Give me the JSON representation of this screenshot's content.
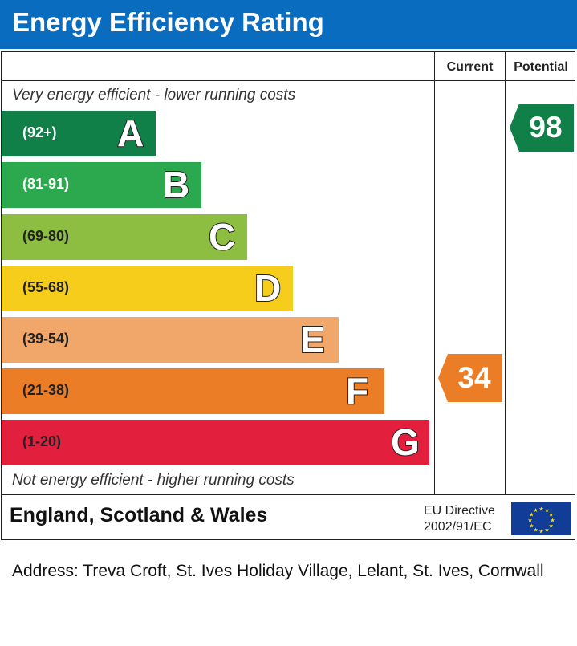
{
  "header": {
    "title": "Energy Efficiency Rating",
    "color": "#0a6cbf"
  },
  "columns": {
    "current": "Current",
    "potential": "Potential"
  },
  "notes": {
    "top": "Very energy efficient - lower running costs",
    "bottom": "Not energy efficient - higher running costs"
  },
  "bands": [
    {
      "range": "(92+)",
      "letter": "A",
      "color": "#118048"
    },
    {
      "range": "(81-91)",
      "letter": "B",
      "color": "#2ca94f"
    },
    {
      "range": "(69-80)",
      "letter": "C",
      "color": "#8dbd41"
    },
    {
      "range": "(55-68)",
      "letter": "D",
      "color": "#f6cd1b"
    },
    {
      "range": "(39-54)",
      "letter": "E",
      "color": "#f1a76a"
    },
    {
      "range": "(21-38)",
      "letter": "F",
      "color": "#eb7d26"
    },
    {
      "range": "(1-20)",
      "letter": "G",
      "color": "#e21f3d"
    }
  ],
  "ratings": {
    "current": {
      "value": "34",
      "band": "F",
      "color": "#eb7d26"
    },
    "potential": {
      "value": "98",
      "band": "A",
      "color": "#118048"
    }
  },
  "footer": {
    "region": "England, Scotland & Wales",
    "directive_line1": "EU Directive",
    "directive_line2": "2002/91/EC",
    "flag_icon": "eu-flag-icon"
  },
  "address": "Address: Treva Croft, St. Ives Holiday Village, Lelant, St. Ives, Cornwall"
}
